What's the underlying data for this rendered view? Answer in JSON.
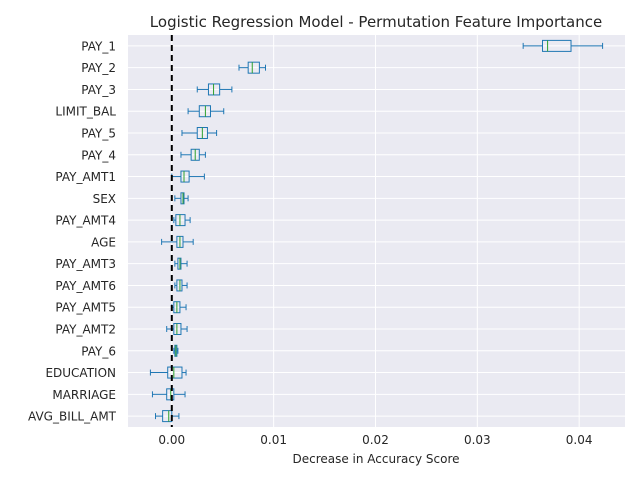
{
  "chart_data": {
    "type": "boxplot",
    "title": "Logistic Regression Model - Permutation Feature Importance",
    "xlabel": "Decrease in Accuracy Score",
    "ylabel": "",
    "xlim": [
      -0.0043,
      0.0445
    ],
    "xticks": [
      0.0,
      0.01,
      0.02,
      0.03,
      0.04
    ],
    "xtick_labels": [
      "0.00",
      "0.01",
      "0.02",
      "0.03",
      "0.04"
    ],
    "grid": true,
    "reference_line": {
      "x": 0.0,
      "style": "dashed"
    },
    "colors": {
      "background": "#eaeaf2",
      "grid": "#ffffff",
      "box": "#1f77b4",
      "median": "#2ca02c",
      "reference_line": "#000000"
    },
    "features": [
      {
        "name": "PAY_1",
        "whisker_low": 0.0345,
        "q1": 0.0364,
        "median": 0.0369,
        "q3": 0.0392,
        "whisker_high": 0.0423
      },
      {
        "name": "PAY_2",
        "whisker_low": 0.0066,
        "q1": 0.0075,
        "median": 0.0079,
        "q3": 0.0086,
        "whisker_high": 0.0092
      },
      {
        "name": "PAY_3",
        "whisker_low": 0.0025,
        "q1": 0.0036,
        "median": 0.0041,
        "q3": 0.0047,
        "whisker_high": 0.0059
      },
      {
        "name": "LIMIT_BAL",
        "whisker_low": 0.0016,
        "q1": 0.0027,
        "median": 0.0033,
        "q3": 0.0038,
        "whisker_high": 0.0051
      },
      {
        "name": "PAY_5",
        "whisker_low": 0.001,
        "q1": 0.0025,
        "median": 0.003,
        "q3": 0.0035,
        "whisker_high": 0.0044
      },
      {
        "name": "PAY_4",
        "whisker_low": 0.0009,
        "q1": 0.0019,
        "median": 0.0023,
        "q3": 0.0027,
        "whisker_high": 0.0033
      },
      {
        "name": "PAY_AMT1",
        "whisker_low": 0.0,
        "q1": 0.0009,
        "median": 0.0012,
        "q3": 0.0017,
        "whisker_high": 0.0032
      },
      {
        "name": "SEX",
        "whisker_low": 0.0003,
        "q1": 0.0009,
        "median": 0.0011,
        "q3": 0.0012,
        "whisker_high": 0.0016
      },
      {
        "name": "PAY_AMT4",
        "whisker_low": 0.0002,
        "q1": 0.0004,
        "median": 0.0008,
        "q3": 0.0013,
        "whisker_high": 0.0018
      },
      {
        "name": "AGE",
        "whisker_low": -0.001,
        "q1": 0.0005,
        "median": 0.0008,
        "q3": 0.0011,
        "whisker_high": 0.0021
      },
      {
        "name": "PAY_AMT3",
        "whisker_low": 0.0003,
        "q1": 0.0006,
        "median": 0.0008,
        "q3": 0.0009,
        "whisker_high": 0.0015
      },
      {
        "name": "PAY_AMT6",
        "whisker_low": 0.0003,
        "q1": 0.0005,
        "median": 0.0008,
        "q3": 0.001,
        "whisker_high": 0.0015
      },
      {
        "name": "PAY_AMT5",
        "whisker_low": 0.0,
        "q1": 0.0002,
        "median": 0.0005,
        "q3": 0.0008,
        "whisker_high": 0.0014
      },
      {
        "name": "PAY_AMT2",
        "whisker_low": -0.0005,
        "q1": 0.0002,
        "median": 0.0005,
        "q3": 0.0009,
        "whisker_high": 0.0015
      },
      {
        "name": "PAY_6",
        "whisker_low": 0.0002,
        "q1": 0.0003,
        "median": 0.0004,
        "q3": 0.0005,
        "whisker_high": 0.0006
      },
      {
        "name": "EDUCATION",
        "whisker_low": -0.0021,
        "q1": -0.0004,
        "median": 0.0002,
        "q3": 0.001,
        "whisker_high": 0.0014
      },
      {
        "name": "MARRIAGE",
        "whisker_low": -0.0019,
        "q1": -0.0005,
        "median": -0.0001,
        "q3": 0.0002,
        "whisker_high": 0.0013
      },
      {
        "name": "AVG_BILL_AMT",
        "whisker_low": -0.0016,
        "q1": -0.0009,
        "median": -0.0003,
        "q3": 0.0,
        "whisker_high": 0.0007
      }
    ]
  }
}
